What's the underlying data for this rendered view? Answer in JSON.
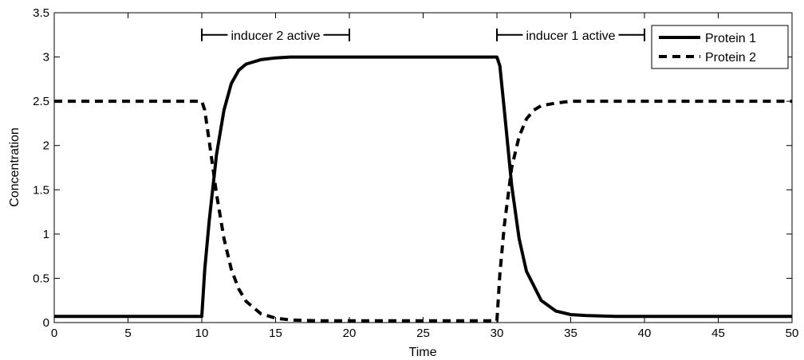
{
  "chart_data": {
    "type": "line",
    "title": "",
    "xlabel": "Time",
    "ylabel": "Concentration",
    "xlim": [
      0,
      50
    ],
    "ylim": [
      0,
      3.5
    ],
    "xticks": [
      0,
      5,
      10,
      15,
      20,
      25,
      30,
      35,
      40,
      45,
      50
    ],
    "yticks": [
      0,
      0.5,
      1,
      1.5,
      2,
      2.5,
      3,
      3.5
    ],
    "xtick_labels": [
      "0",
      "5",
      "10",
      "15",
      "20",
      "25",
      "30",
      "35",
      "40",
      "45",
      "50"
    ],
    "ytick_labels": [
      "0",
      "0.5",
      "1",
      "1.5",
      "2",
      "2.5",
      "3",
      "3.5"
    ],
    "grid": false,
    "legend_position": "top-right",
    "series": [
      {
        "name": "Protein 1",
        "style": "solid",
        "color": "#000000",
        "x": [
          0,
          10,
          10.2,
          10.5,
          11,
          11.5,
          12,
          12.5,
          13,
          14,
          15,
          16,
          18,
          20,
          25,
          30,
          30.2,
          30.5,
          31,
          31.5,
          32,
          33,
          34,
          35,
          36,
          38,
          40,
          45,
          50
        ],
        "y": [
          0.07,
          0.07,
          0.6,
          1.15,
          1.9,
          2.4,
          2.7,
          2.85,
          2.92,
          2.97,
          2.99,
          3.0,
          3.0,
          3.0,
          3.0,
          3.0,
          2.9,
          2.4,
          1.55,
          0.95,
          0.58,
          0.25,
          0.13,
          0.09,
          0.08,
          0.07,
          0.07,
          0.07,
          0.07
        ]
      },
      {
        "name": "Protein 2",
        "style": "dashed",
        "color": "#000000",
        "x": [
          0,
          10,
          10.2,
          10.5,
          11,
          11.5,
          12,
          12.5,
          13,
          14,
          15,
          16,
          18,
          20,
          25,
          30,
          30.2,
          30.5,
          31,
          31.5,
          32,
          32.5,
          33,
          34,
          35,
          36,
          38,
          40,
          45,
          50
        ],
        "y": [
          2.5,
          2.5,
          2.4,
          2.05,
          1.45,
          0.95,
          0.6,
          0.38,
          0.24,
          0.1,
          0.05,
          0.03,
          0.02,
          0.02,
          0.02,
          0.02,
          0.55,
          1.1,
          1.75,
          2.1,
          2.3,
          2.4,
          2.45,
          2.48,
          2.5,
          2.5,
          2.5,
          2.5,
          2.5,
          2.5
        ]
      }
    ],
    "annotations": [
      {
        "text": "inducer 2 active",
        "x_start": 10,
        "x_end": 20,
        "y": 3.25
      },
      {
        "text": "inducer 1 active",
        "x_start": 30,
        "x_end": 40,
        "y": 3.25
      }
    ]
  }
}
